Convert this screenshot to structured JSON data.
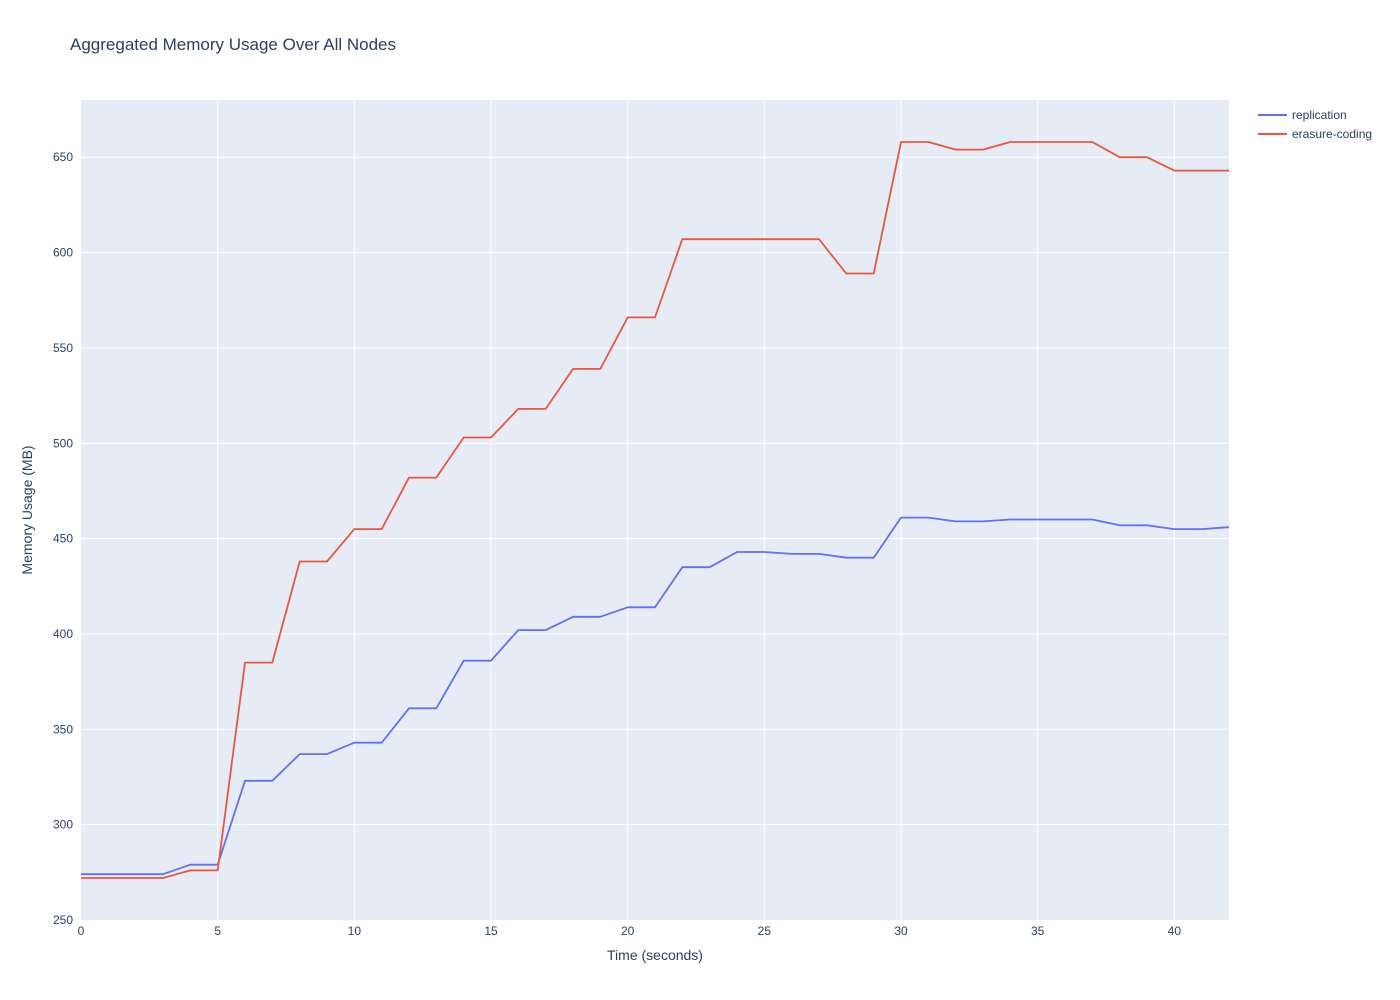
{
  "chart_data": {
    "type": "line",
    "title": "Aggregated Memory Usage Over All Nodes",
    "xlabel": "Time (seconds)",
    "ylabel": "Memory Usage (MB)",
    "xlim": [
      0,
      42
    ],
    "ylim": [
      250,
      680
    ],
    "xticks": [
      0,
      5,
      10,
      15,
      20,
      25,
      30,
      35,
      40
    ],
    "yticks": [
      250,
      300,
      350,
      400,
      450,
      500,
      550,
      600,
      650
    ],
    "grid": true,
    "legend_position": "top-right",
    "x": [
      0,
      1,
      2,
      3,
      4,
      5,
      6,
      7,
      8,
      9,
      10,
      11,
      12,
      13,
      14,
      15,
      16,
      17,
      18,
      19,
      20,
      21,
      22,
      23,
      24,
      25,
      26,
      27,
      28,
      29,
      30,
      31,
      32,
      33,
      34,
      35,
      36,
      37,
      38,
      39,
      40,
      41,
      42
    ],
    "series": [
      {
        "name": "replication",
        "color": "#636efa",
        "values": [
          274,
          274,
          274,
          274,
          279,
          279,
          323,
          323,
          337,
          337,
          343,
          343,
          361,
          361,
          386,
          386,
          402,
          402,
          409,
          409,
          414,
          414,
          435,
          435,
          443,
          443,
          442,
          442,
          440,
          440,
          461,
          461,
          459,
          459,
          460,
          460,
          460,
          460,
          457,
          457,
          455,
          455,
          456
        ]
      },
      {
        "name": "erasure-coding",
        "color": "#ef553b",
        "values": [
          272,
          272,
          272,
          272,
          276,
          276,
          385,
          385,
          438,
          438,
          455,
          455,
          482,
          482,
          503,
          503,
          518,
          518,
          539,
          539,
          566,
          566,
          607,
          607,
          607,
          607,
          607,
          607,
          589,
          589,
          658,
          658,
          654,
          654,
          658,
          658,
          658,
          658,
          650,
          650,
          643,
          643,
          643
        ]
      }
    ]
  }
}
